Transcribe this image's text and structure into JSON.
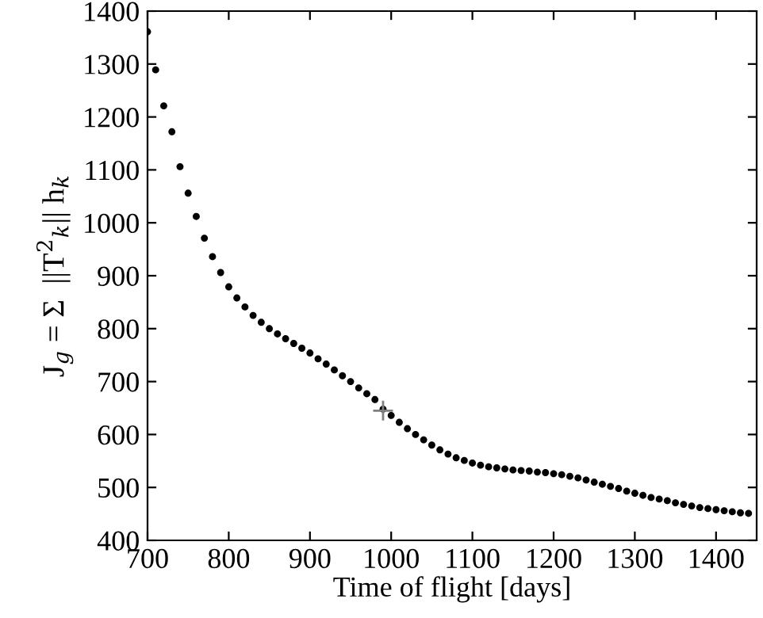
{
  "chart_data": {
    "type": "scatter",
    "xlabel": "Time of flight [days]",
    "ylabel": "J$_{g}$ = Σ  ||T$^{2}$$_{k}$|| h$_{k}$",
    "xlim": [
      700,
      1450
    ],
    "xticks": [
      700,
      800,
      900,
      1000,
      1100,
      1200,
      1300,
      1400
    ],
    "ylim": [
      400,
      1400
    ],
    "yticks": [
      400,
      500,
      600,
      700,
      800,
      900,
      1000,
      1100,
      1200,
      1300,
      1400
    ],
    "grid": false,
    "legend": false,
    "series": [
      {
        "color": "#000000",
        "marker": "circle",
        "x": [
          700,
          710,
          720,
          730,
          740,
          750,
          760,
          770,
          780,
          790,
          800,
          810,
          820,
          830,
          840,
          850,
          860,
          870,
          880,
          890,
          900,
          910,
          920,
          930,
          940,
          950,
          960,
          970,
          980,
          990,
          1000,
          1010,
          1020,
          1030,
          1040,
          1050,
          1060,
          1070,
          1080,
          1090,
          1100,
          1110,
          1120,
          1130,
          1140,
          1150,
          1160,
          1170,
          1180,
          1190,
          1200,
          1210,
          1220,
          1230,
          1240,
          1250,
          1260,
          1270,
          1280,
          1290,
          1300,
          1310,
          1320,
          1330,
          1340,
          1350,
          1360,
          1370,
          1380,
          1390,
          1400,
          1410,
          1420,
          1430,
          1440
        ],
        "values": [
          1361,
          1289,
          1221,
          1172,
          1106,
          1056,
          1012,
          971,
          936,
          906,
          879,
          858,
          841,
          825,
          812,
          800,
          790,
          781,
          772,
          763,
          754,
          743,
          733,
          722,
          711,
          700,
          688,
          677,
          666,
          648,
          636,
          623,
          611,
          600,
          590,
          580,
          571,
          563,
          556,
          551,
          546,
          542,
          539,
          537,
          535,
          533,
          532,
          531,
          529,
          528,
          526,
          524,
          521,
          518,
          514,
          510,
          506,
          502,
          498,
          493,
          489,
          485,
          481,
          478,
          475,
          471,
          468,
          465,
          462,
          460,
          458,
          456,
          454,
          452,
          451
        ]
      },
      {
        "color": "#808080",
        "marker": "cross",
        "x": [
          990
        ],
        "values": [
          645
        ]
      }
    ]
  }
}
